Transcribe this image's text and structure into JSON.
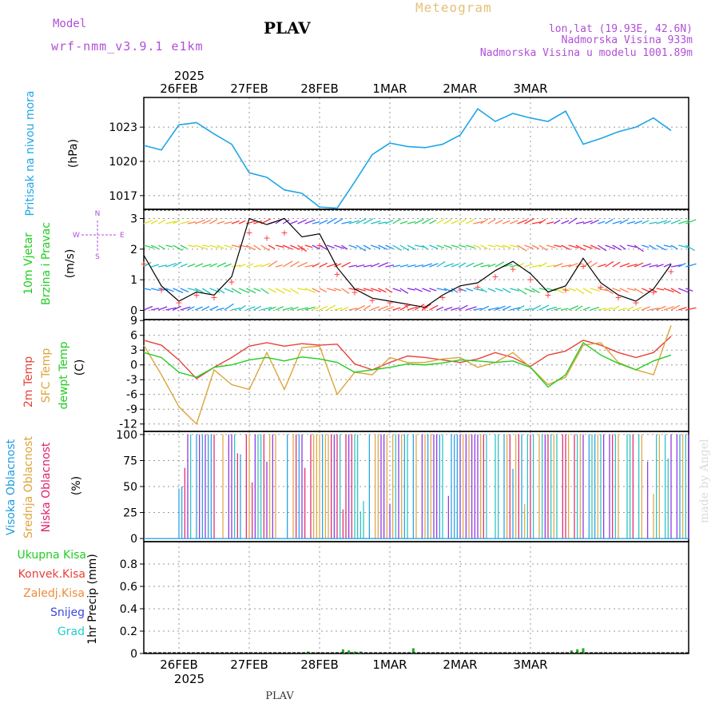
{
  "header": {
    "model_label": "Model",
    "model_name": "wrf-nmm_v3.9.1 e1km",
    "station": "PLAV",
    "product": "Meteogram",
    "lonlat": "lon,lat (19.93E, 42.6N)",
    "elevation": "Nadmorska Visina 933m",
    "model_elevation": "Nadmorska Visina u modelu 1001.89m",
    "footer_station": "PLAV",
    "credit": "made by Angel",
    "year_top": "2025",
    "year_bottom": "2025"
  },
  "colors": {
    "pressure": "#1ea6e6",
    "temp2m": "#e8413a",
    "sfc_temp": "#dca43a",
    "dewpoint": "#22cc22",
    "high_cloud": "#1e9ce0",
    "mid_cloud": "#dca43a",
    "low_cloud": "#e0206a",
    "precip_total": "#22aa22",
    "grid": "#999999",
    "label_purple": "#b04fd8",
    "label_gold": "#e6c079"
  },
  "chart_data": [
    {
      "type": "line",
      "name": "pressure",
      "ylabel_parts": [
        "Pritisak na nivou mora",
        "(hPa)"
      ],
      "days": [
        "26FEB",
        "27FEB",
        "28FEB",
        "1MAR",
        "2MAR",
        "3MAR"
      ],
      "x_hours": [
        0,
        6,
        12,
        18,
        24,
        30,
        36,
        42,
        48,
        54,
        60,
        66,
        72,
        78,
        84,
        90,
        96,
        102,
        108,
        114,
        120,
        126,
        132,
        138,
        144,
        150,
        156,
        162,
        168,
        174,
        180
      ],
      "yticks": [
        1017,
        1020,
        1023
      ],
      "ylim": [
        1015.8,
        1025.6
      ],
      "values": [
        1021.4,
        1021.0,
        1023.2,
        1023.4,
        1022.4,
        1021.5,
        1019.0,
        1018.6,
        1017.5,
        1017.2,
        1016.0,
        1015.9,
        1018.2,
        1020.6,
        1021.6,
        1021.3,
        1021.2,
        1021.5,
        1022.3,
        1024.6,
        1023.5,
        1024.2,
        1023.8,
        1023.5,
        1024.4,
        1021.5,
        1022.0,
        1022.6,
        1023.0,
        1023.8,
        1022.7
      ]
    },
    {
      "type": "line",
      "name": "wind",
      "ylabel_parts": [
        "10m Vjetar",
        "Brzina i Pravac",
        "(m/s)"
      ],
      "compass": {
        "n": "N",
        "e": "E",
        "w": "W",
        "s": "S"
      },
      "yticks": [
        0,
        1,
        2,
        3
      ],
      "ylim": [
        -0.3,
        3.3
      ],
      "x_hours": [
        0,
        6,
        12,
        18,
        24,
        30,
        36,
        42,
        48,
        54,
        60,
        66,
        72,
        78,
        84,
        90,
        96,
        102,
        108,
        114,
        120,
        126,
        132,
        138,
        144,
        150,
        156,
        162,
        168,
        174,
        180
      ],
      "values": [
        1.8,
        0.8,
        0.3,
        0.6,
        0.5,
        1.1,
        3.0,
        2.8,
        3.0,
        2.4,
        2.5,
        1.4,
        0.7,
        0.4,
        0.3,
        0.2,
        0.1,
        0.5,
        0.8,
        0.9,
        1.3,
        1.6,
        1.2,
        0.6,
        0.8,
        1.7,
        0.9,
        0.5,
        0.3,
        0.7,
        1.5
      ]
    },
    {
      "type": "line",
      "name": "temperature",
      "ylabel_parts": [
        "2m Temp",
        "SFC Temp",
        "dewpt Temp",
        "(C)"
      ],
      "yticks": [
        -12,
        -9,
        -6,
        -3,
        0,
        3,
        6,
        9
      ],
      "ylim": [
        -13.5,
        9.2
      ],
      "x_hours": [
        0,
        6,
        12,
        18,
        24,
        30,
        36,
        42,
        48,
        54,
        60,
        66,
        72,
        78,
        84,
        90,
        96,
        102,
        108,
        114,
        120,
        126,
        132,
        138,
        144,
        150,
        156,
        162,
        168,
        174,
        180
      ],
      "series": [
        {
          "name": "2m Temp",
          "values": [
            5.0,
            4.0,
            1.0,
            -2.8,
            -0.5,
            1.5,
            3.8,
            4.5,
            3.8,
            4.3,
            4.0,
            4.2,
            0.2,
            -1.0,
            0.5,
            1.8,
            1.5,
            1.0,
            0.5,
            1.2,
            2.5,
            1.5,
            -0.3,
            2.0,
            2.8,
            5.0,
            4.0,
            2.5,
            1.5,
            2.5,
            5.8
          ]
        },
        {
          "name": "SFC Temp",
          "values": [
            4.0,
            -2.0,
            -8.5,
            -12.0,
            -1.0,
            -4.0,
            -5.0,
            2.5,
            -5.0,
            3.5,
            3.8,
            -6.0,
            -1.5,
            -2.0,
            1.5,
            0.5,
            0.5,
            1.2,
            1.5,
            -0.5,
            0.5,
            2.5,
            -0.5,
            -4.0,
            -2.5,
            4.0,
            4.5,
            0.5,
            -1.0,
            -2.0,
            8.0
          ]
        },
        {
          "name": "dewpt Temp",
          "values": [
            2.5,
            1.5,
            -1.5,
            -2.5,
            -0.5,
            0.0,
            1.0,
            1.5,
            0.8,
            1.6,
            1.2,
            0.5,
            -1.5,
            -1.0,
            -0.5,
            0.2,
            0.0,
            0.4,
            1.0,
            0.8,
            0.5,
            0.8,
            -0.5,
            -4.5,
            -2.0,
            4.5,
            2.0,
            0.3,
            -1.0,
            0.8,
            2.0
          ]
        }
      ]
    },
    {
      "type": "bar",
      "name": "clouds",
      "ylabel_parts": [
        "Visoka Oblacnost",
        "Srednja Oblacnost",
        "Niska Oblacnost",
        "(%)"
      ],
      "yticks": [
        0,
        25,
        50,
        75,
        100
      ],
      "ylim": [
        -3,
        103
      ],
      "note": "cloud bars mostly alternating 0/100 from 26FEB onward",
      "cloud_start_hour": 12,
      "cloud_density": 0.85
    },
    {
      "type": "bar",
      "name": "precipitation",
      "ylabel_parts": [
        "1hr Precip (mm)"
      ],
      "legend": [
        "Ukupna Kisa",
        "Konvek.Kisa",
        "Zaledj.Kisa",
        "Snijeg",
        "Grad"
      ],
      "yticks": [
        0,
        0.2,
        0.4,
        0.6,
        0.8
      ],
      "ylim": [
        0,
        1.0
      ],
      "x_hours": [
        56,
        68,
        70,
        72,
        74,
        92,
        146,
        148,
        150
      ],
      "values": [
        0.01,
        0.03,
        0.02,
        0.01,
        0.01,
        0.04,
        0.02,
        0.03,
        0.04
      ]
    }
  ]
}
